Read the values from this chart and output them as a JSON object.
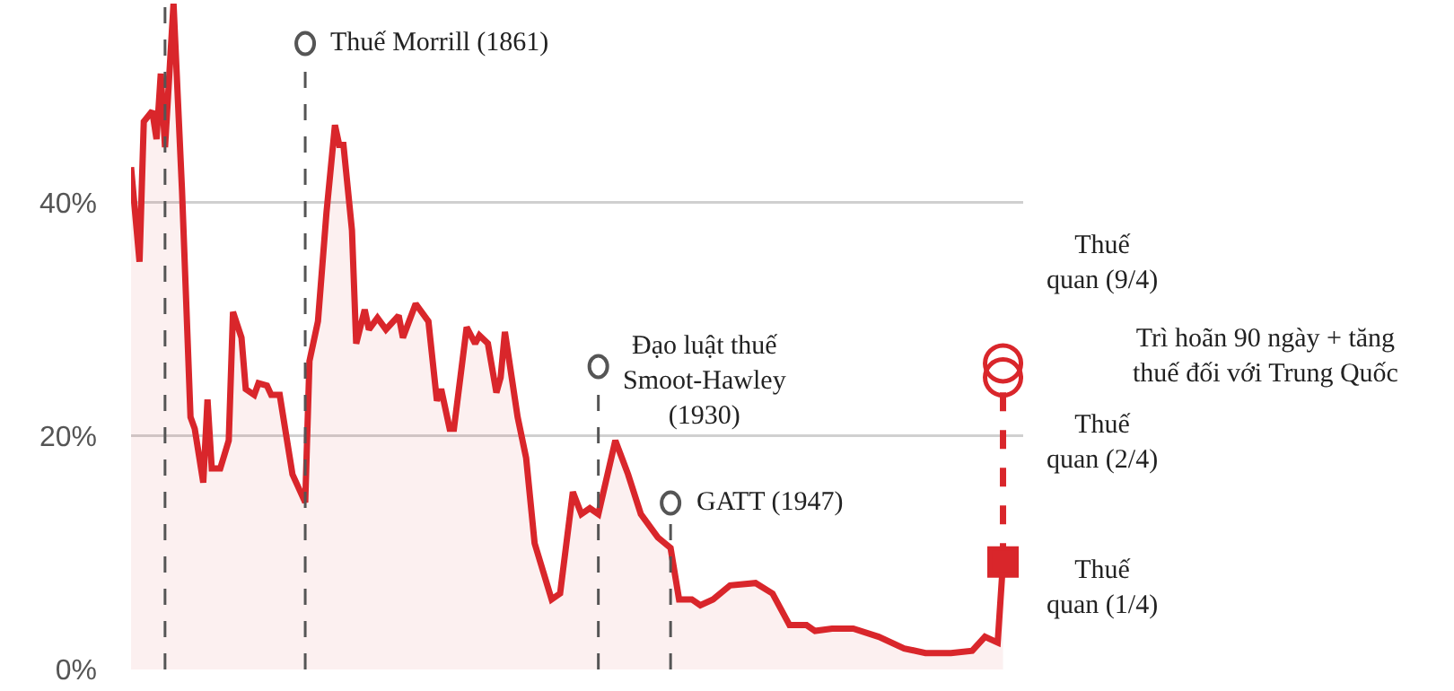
{
  "chart_data": {
    "type": "area",
    "xlim": [
      1820,
      2030
    ],
    "ylim": [
      0,
      57
    ],
    "yticks": [
      {
        "value": 0,
        "label": "0%"
      },
      {
        "value": 20,
        "label": "20%"
      },
      {
        "value": 40,
        "label": "40%"
      }
    ],
    "tick_labels": "y",
    "grid": "y",
    "series": [
      {
        "color": "#d9262b",
        "marker": "none",
        "line_style": "solid",
        "x": [
          1820,
          1822,
          1823,
          1825,
          1826,
          1827,
          1828,
          1830,
          1832,
          1834,
          1835,
          1837,
          1838,
          1839,
          1841,
          1843,
          1844,
          1846,
          1847,
          1849,
          1850,
          1852,
          1853,
          1855,
          1858,
          1861,
          1862,
          1864,
          1866,
          1868,
          1869,
          1870,
          1872,
          1873,
          1875,
          1876,
          1878,
          1880,
          1883,
          1884,
          1887,
          1890,
          1892,
          1893,
          1895,
          1896,
          1899,
          1901,
          1902,
          1904,
          1906,
          1907,
          1908,
          1911,
          1913,
          1915,
          1917,
          1919,
          1921,
          1924,
          1926,
          1928,
          1930,
          1934,
          1937,
          1940,
          1944,
          1947,
          1949,
          1952,
          1954,
          1957,
          1961,
          1967,
          1971,
          1975,
          1979,
          1981,
          1985,
          1990,
          1996,
          2002,
          2007,
          2013,
          2018,
          2021,
          2024,
          2025.25
        ],
        "values": [
          43.0,
          34.9,
          46.9,
          47.8,
          45.4,
          51.0,
          44.7,
          57,
          41.0,
          21.6,
          20.6,
          16.0,
          23.1,
          17.2,
          17.2,
          19.6,
          30.6,
          28.4,
          24.0,
          23.5,
          24.5,
          24.3,
          23.5,
          23.5,
          16.7,
          14.3,
          26.4,
          29.8,
          39.1,
          46.6,
          44.9,
          44.9,
          37.6,
          27.9,
          30.8,
          29.1,
          30.1,
          29.1,
          30.3,
          28.4,
          31.3,
          29.8,
          23.0,
          24.0,
          20.6,
          20.6,
          29.3,
          27.9,
          28.6,
          27.9,
          23.7,
          25.0,
          28.9,
          21.6,
          18.1,
          10.8,
          8.4,
          6.0,
          6.5,
          15.2,
          13.3,
          13.8,
          13.3,
          19.6,
          16.7,
          13.3,
          11.3,
          10.4,
          6.0,
          6.0,
          5.5,
          6.0,
          7.2,
          7.4,
          6.5,
          3.8,
          3.8,
          3.3,
          3.5,
          3.5,
          2.8,
          1.8,
          1.4,
          1.4,
          1.6,
          2.8,
          2.3,
          9.2
        ]
      },
      {
        "type": "line",
        "color": "#d9262b",
        "marker": "none",
        "line_style": "dashed",
        "x": [
          2025.25,
          2025.25
        ],
        "values": [
          9.2,
          25.0
        ]
      },
      {
        "type": "scatter",
        "color": "#d9262b",
        "marker": "square",
        "x": [
          2025.25
        ],
        "values": [
          9.2
        ]
      },
      {
        "type": "scatter",
        "color": "#d9262b",
        "marker": "circle",
        "x": [
          2025.25,
          2025.25
        ],
        "values": [
          26.2,
          25.0
        ]
      }
    ],
    "ref_lines": [
      {
        "axis": "x",
        "value": 1828,
        "label": null,
        "color": "#555555",
        "line_style": "dashed"
      },
      {
        "axis": "x",
        "value": 1861,
        "label": "Thuế Morrill (1861)",
        "color": "#555555",
        "line_style": "dashed"
      },
      {
        "axis": "x",
        "value": 1930,
        "label": "Đạo luật thuế\nSmoot-Hawley\n(1930)",
        "color": "#555555",
        "line_style": "dashed"
      },
      {
        "axis": "x",
        "value": 1947,
        "label": "GATT (1947)",
        "color": "#555555",
        "line_style": "dashed"
      }
    ],
    "annotations": [
      "Thuế\nquan (9/4)",
      "Trì hoãn 90 ngày + tăng\nthuế đối với Trung Quốc",
      "Thuế\nquan (2/4)",
      "Thuế\nquan (1/4)"
    ]
  }
}
